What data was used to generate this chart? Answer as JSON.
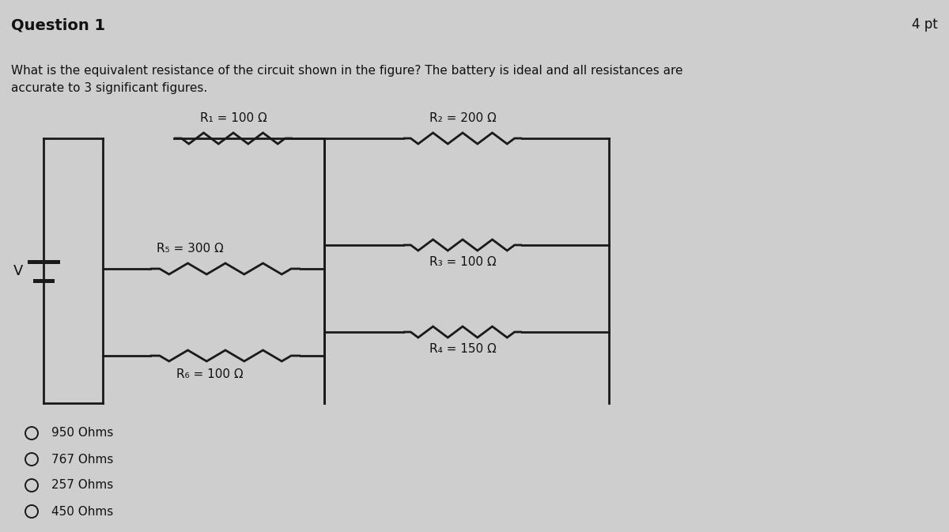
{
  "title": "Question 1",
  "points": "4 pt",
  "question_text": "What is the equivalent resistance of the circuit shown in the figure? The battery is ideal and all resistances are\naccurate to 3 significant figures.",
  "bg_color": "#cecece",
  "circuit_color": "#1a1a1a",
  "resistors": {
    "R1": {
      "label": "R₁ = 100 Ω",
      "value": 100
    },
    "R2": {
      "label": "R₂ = 200 Ω",
      "value": 200
    },
    "R3": {
      "label": "R₃ = 100 Ω",
      "value": 100
    },
    "R4": {
      "label": "R₄ = 150 Ω",
      "value": 150
    },
    "R5": {
      "label": "R₅ = 300 Ω",
      "value": 300
    },
    "R6": {
      "label": "R₆ = 100 Ω",
      "value": 100
    }
  },
  "choices": [
    "950 Ohms",
    "767 Ohms",
    "257 Ohms",
    "450 Ohms"
  ],
  "text_color": "#111111",
  "line_width": 2.0,
  "fig_width": 12.0,
  "fig_height": 6.73
}
